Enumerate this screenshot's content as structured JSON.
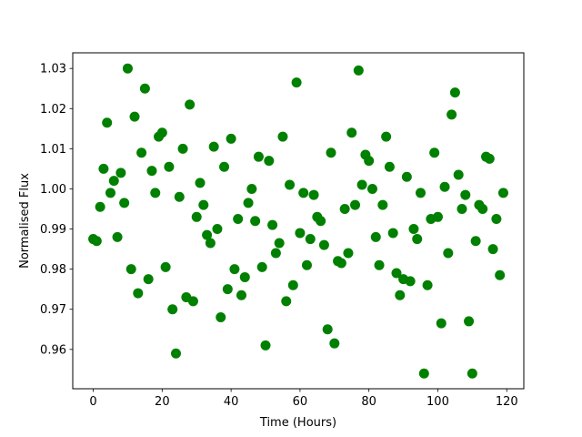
{
  "chart_data": {
    "type": "scatter",
    "title": "",
    "xlabel": "Time (Hours)",
    "ylabel": "Normalised Flux",
    "xlim": [
      -5.95,
      124.95
    ],
    "ylim": [
      0.9502,
      1.0339
    ],
    "xticks": [
      0,
      20,
      40,
      60,
      80,
      100,
      120
    ],
    "xtick_labels": [
      "0",
      "20",
      "40",
      "60",
      "80",
      "100",
      "120"
    ],
    "yticks": [
      0.96,
      0.97,
      0.98,
      0.99,
      1.0,
      1.01,
      1.02,
      1.03
    ],
    "ytick_labels": [
      "0.96",
      "0.97",
      "0.98",
      "0.99",
      "1.00",
      "1.01",
      "1.02",
      "1.03"
    ],
    "grid": false,
    "marker_color": "#008000",
    "x": [
      0,
      1,
      2,
      3,
      4,
      5,
      6,
      7,
      8,
      9,
      10,
      11,
      12,
      13,
      14,
      15,
      16,
      17,
      18,
      19,
      20,
      21,
      22,
      23,
      24,
      25,
      26,
      27,
      28,
      29,
      30,
      31,
      32,
      33,
      34,
      35,
      36,
      37,
      38,
      39,
      40,
      41,
      42,
      43,
      44,
      45,
      46,
      47,
      48,
      49,
      50,
      51,
      52,
      53,
      54,
      55,
      56,
      57,
      58,
      59,
      60,
      61,
      62,
      63,
      64,
      65,
      66,
      67,
      68,
      69,
      70,
      71,
      72,
      73,
      74,
      75,
      76,
      77,
      78,
      79,
      80,
      81,
      82,
      83,
      84,
      85,
      86,
      87,
      88,
      89,
      90,
      91,
      92,
      93,
      94,
      95,
      96,
      97,
      98,
      99,
      100,
      101,
      102,
      103,
      104,
      105,
      106,
      107,
      108,
      109,
      110,
      111,
      112,
      113,
      114,
      115,
      116,
      117,
      118,
      119
    ],
    "y": [
      0.9875,
      0.987,
      0.9955,
      1.005,
      1.0165,
      0.999,
      1.002,
      0.988,
      1.004,
      0.9965,
      1.03,
      0.98,
      1.018,
      0.974,
      1.009,
      1.025,
      0.9775,
      1.0045,
      0.999,
      1.013,
      1.014,
      0.9805,
      1.0055,
      0.97,
      0.959,
      0.998,
      1.01,
      0.973,
      1.021,
      0.972,
      0.993,
      1.0015,
      0.996,
      0.9885,
      0.9865,
      1.0105,
      0.99,
      0.968,
      1.0055,
      0.975,
      1.0125,
      0.98,
      0.9925,
      0.9735,
      0.978,
      0.9965,
      1.0,
      0.992,
      1.008,
      0.9805,
      0.961,
      1.007,
      0.991,
      0.984,
      0.9865,
      1.013,
      0.972,
      1.001,
      0.976,
      1.0265,
      0.989,
      0.999,
      0.981,
      0.9875,
      0.9985,
      0.993,
      0.992,
      0.986,
      0.965,
      1.009,
      0.9615,
      0.982,
      0.9815,
      0.995,
      0.984,
      1.014,
      0.996,
      1.0295,
      1.001,
      1.0085,
      1.007,
      1.0,
      0.988,
      0.981,
      0.996,
      1.013,
      1.0055,
      0.989,
      0.979,
      0.9735,
      0.9775,
      1.003,
      0.977,
      0.99,
      0.9875,
      0.999,
      0.954,
      0.976,
      0.9925,
      1.009,
      0.993,
      0.9665,
      1.0005,
      0.984,
      1.0185,
      1.024,
      1.0035,
      0.995,
      0.9985,
      0.967,
      0.954,
      0.987,
      0.996,
      0.995,
      1.008,
      1.0075,
      0.985,
      0.9925,
      0.9785,
      0.999
    ]
  }
}
